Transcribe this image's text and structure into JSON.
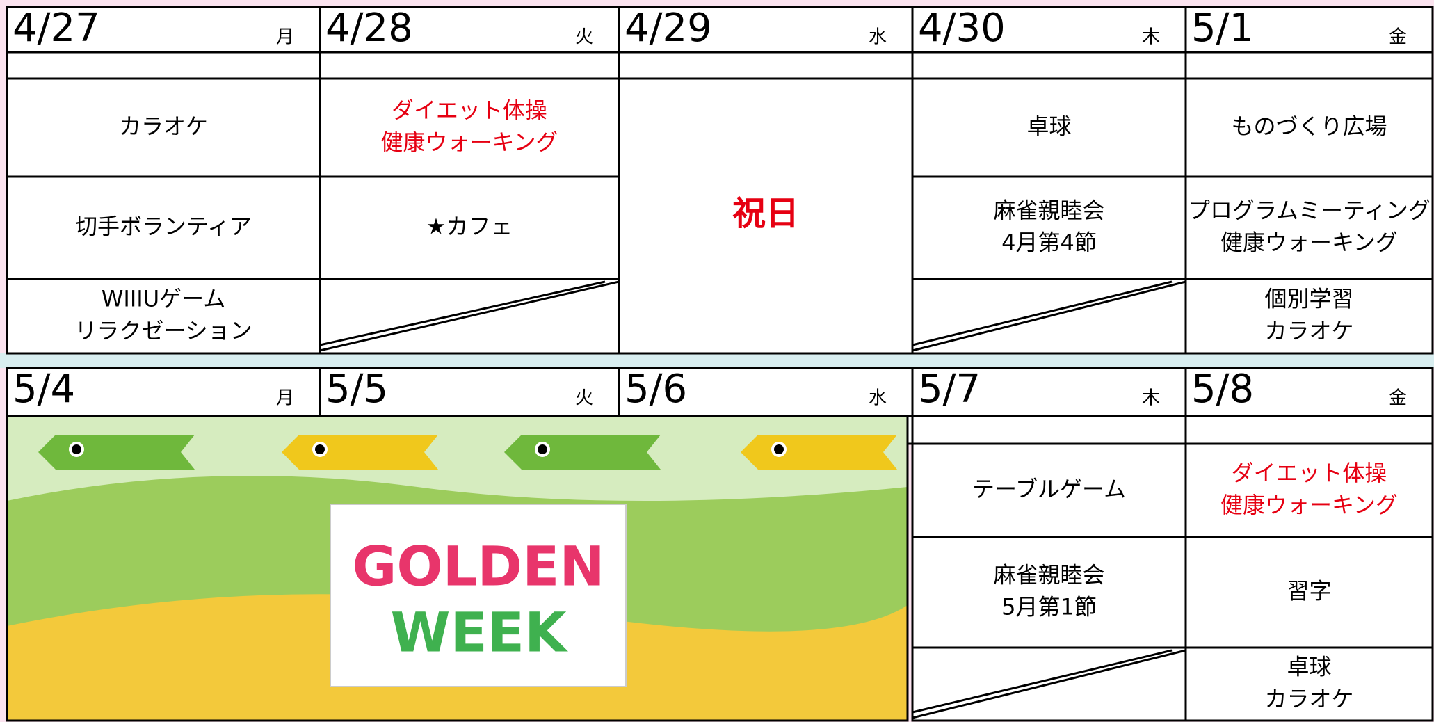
{
  "weeks": [
    {
      "days": [
        {
          "date": "4/27",
          "weekday": "月",
          "slots": [
            {
              "lines": [
                "カラオケ"
              ]
            },
            {
              "lines": [
                "切手ボランティア"
              ]
            },
            {
              "lines": [
                "WIIIUゲーム",
                "リラクゼーション"
              ]
            }
          ]
        },
        {
          "date": "4/28",
          "weekday": "火",
          "slots": [
            {
              "lines": [
                "ダイエット体操",
                "健康ウォーキング"
              ],
              "color": "#e60012"
            },
            {
              "lines": [
                "★カフェ"
              ]
            },
            null
          ]
        },
        {
          "date": "4/29",
          "weekday": "水",
          "holiday": "祝日"
        },
        {
          "date": "4/30",
          "weekday": "木",
          "slots": [
            {
              "lines": [
                "卓球"
              ]
            },
            {
              "lines": [
                "麻雀親睦会",
                "4月第4節"
              ]
            },
            null
          ]
        },
        {
          "date": "5/1",
          "weekday": "金",
          "slots": [
            {
              "lines": [
                "ものづくり広場"
              ]
            },
            {
              "lines": [
                "プログラムミーティング",
                "健康ウォーキング"
              ]
            },
            {
              "lines": [
                "個別学習",
                "カラオケ"
              ]
            }
          ]
        }
      ]
    },
    {
      "days": [
        {
          "date": "5/4",
          "weekday": "月"
        },
        {
          "date": "5/5",
          "weekday": "火"
        },
        {
          "date": "5/6",
          "weekday": "水"
        },
        {
          "date": "5/7",
          "weekday": "木",
          "slots": [
            {
              "lines": [
                "テーブルゲーム"
              ]
            },
            {
              "lines": [
                "麻雀親睦会",
                "5月第1節"
              ]
            },
            null
          ]
        },
        {
          "date": "5/8",
          "weekday": "金",
          "slots": [
            {
              "lines": [
                "ダイエット体操",
                "健康ウォーキング"
              ],
              "color": "#e60012"
            },
            {
              "lines": [
                "習字"
              ]
            },
            {
              "lines": [
                "卓球",
                "カラオケ"
              ]
            }
          ]
        }
      ]
    }
  ],
  "banner": {
    "line1": "GOLDEN",
    "line2": "WEEK"
  }
}
